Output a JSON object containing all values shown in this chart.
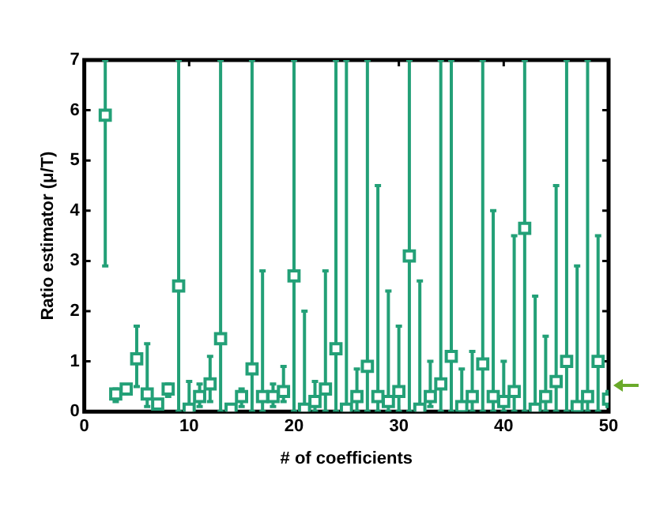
{
  "chart_data": {
    "type": "scatter",
    "xlabel": "# of coefficients",
    "ylabel": "Ratio estimator (μ/T)",
    "x": [
      2,
      3,
      4,
      5,
      6,
      7,
      8,
      9,
      10,
      11,
      12,
      13,
      14,
      15,
      16,
      17,
      18,
      19,
      20,
      21,
      22,
      23,
      24,
      25,
      26,
      27,
      28,
      29,
      30,
      31,
      32,
      33,
      34,
      35,
      36,
      37,
      38,
      39,
      40,
      41,
      42,
      43,
      44,
      45,
      46,
      47,
      48,
      49,
      50
    ],
    "series": [
      {
        "color": "#23a077",
        "values": [
          5.9,
          0.35,
          0.45,
          1.05,
          0.35,
          0.15,
          0.45,
          2.5,
          0.05,
          0.3,
          0.55,
          1.45,
          0.05,
          0.3,
          0.85,
          0.3,
          0.3,
          0.4,
          2.7,
          0.05,
          0.2,
          0.45,
          1.25,
          0.05,
          0.3,
          0.9,
          0.3,
          0.2,
          0.4,
          3.1,
          0.05,
          0.3,
          0.55,
          1.1,
          0.1,
          0.3,
          0.95,
          0.3,
          0.2,
          0.4,
          3.65,
          0.05,
          0.3,
          0.6,
          1.0,
          0.1,
          0.3,
          1.0,
          0.25
        ],
        "errors": [
          [
            2.9,
            7
          ],
          [
            0.2,
            0.45
          ],
          [
            0.35,
            0.5
          ],
          [
            0.5,
            1.7
          ],
          [
            0.1,
            1.35
          ],
          null,
          [
            0.3,
            0.55
          ],
          [
            0,
            7
          ],
          [
            0,
            0.6
          ],
          [
            0.1,
            0.55
          ],
          [
            0.2,
            1.1
          ],
          [
            0,
            7
          ],
          null,
          [
            0.1,
            0.45
          ],
          [
            0,
            7
          ],
          [
            0,
            2.8
          ],
          [
            0.1,
            0.55
          ],
          [
            0.2,
            0.9
          ],
          [
            0,
            7
          ],
          [
            0,
            2.0
          ],
          [
            0,
            0.6
          ],
          [
            0,
            2.8
          ],
          [
            0,
            7
          ],
          [
            0,
            7
          ],
          [
            0,
            0.85
          ],
          [
            0,
            7
          ],
          [
            0,
            4.5
          ],
          [
            0,
            2.4
          ],
          [
            0,
            1.7
          ],
          [
            0,
            7
          ],
          [
            0,
            2.6
          ],
          [
            0.1,
            1.0
          ],
          [
            0,
            7
          ],
          [
            0,
            7
          ],
          [
            0,
            0.85
          ],
          [
            0,
            1.2
          ],
          [
            0,
            7
          ],
          [
            0,
            4.0
          ],
          [
            0,
            1.0
          ],
          [
            0,
            3.5
          ],
          [
            0,
            7
          ],
          [
            0,
            2.3
          ],
          [
            0,
            1.5
          ],
          [
            0,
            4.5
          ],
          [
            0,
            7
          ],
          [
            0,
            2.9
          ],
          [
            0,
            7
          ],
          [
            0,
            3.5
          ],
          [
            0.1,
            0.4
          ]
        ]
      }
    ],
    "xlim": [
      0,
      50
    ],
    "xticks": [
      0,
      10,
      20,
      30,
      40,
      50
    ],
    "ylim": [
      0,
      7
    ],
    "yticks": [
      0,
      1,
      2,
      3,
      4,
      5,
      6,
      7
    ],
    "marker": "square",
    "grid": false,
    "legend": false
  }
}
